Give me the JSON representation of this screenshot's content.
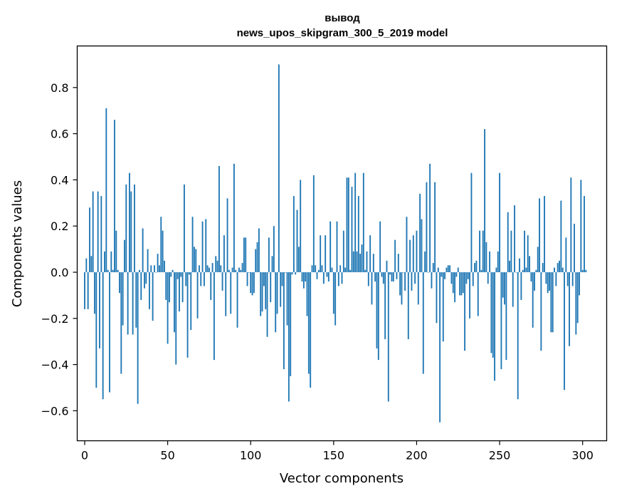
{
  "chart_data": {
    "type": "bar",
    "title_line1": "вывод",
    "title_line2": "news_upos_skipgram_300_5_2019 model",
    "xlabel": "Vector components",
    "ylabel": "Components values",
    "xlim": [
      -4.5,
      314.5
    ],
    "ylim": [
      -0.73,
      0.98
    ],
    "x_ticks": [
      0,
      50,
      100,
      150,
      200,
      250,
      300
    ],
    "x_tick_labels": [
      "0",
      "50",
      "100",
      "150",
      "200",
      "250",
      "300"
    ],
    "y_ticks": [
      -0.6,
      -0.4,
      -0.2,
      0.0,
      0.2,
      0.4,
      0.6,
      0.8
    ],
    "y_tick_labels": [
      "−0.6",
      "−0.4",
      "−0.2",
      "0.0",
      "0.2",
      "0.4",
      "0.6",
      "0.8"
    ],
    "grid": false,
    "bar_color": "#1f77b4",
    "values": [
      -0.16,
      0.06,
      -0.16,
      0.28,
      0.07,
      0.35,
      -0.18,
      -0.5,
      0.35,
      -0.33,
      0.33,
      -0.55,
      0.09,
      0.71,
      0.01,
      -0.52,
      0.09,
      0.01,
      0.66,
      0.18,
      0.01,
      -0.09,
      -0.44,
      -0.23,
      0.14,
      0.38,
      -0.27,
      0.43,
      0.35,
      -0.27,
      0.38,
      -0.24,
      -0.57,
      0.01,
      -0.12,
      0.19,
      -0.07,
      -0.05,
      0.1,
      -0.16,
      0.03,
      -0.21,
      0.03,
      0.0,
      0.08,
      0.03,
      0.24,
      0.18,
      0.05,
      -0.12,
      -0.31,
      -0.13,
      -0.02,
      0.01,
      -0.26,
      -0.4,
      -0.03,
      -0.17,
      -0.02,
      -0.13,
      0.38,
      -0.06,
      -0.37,
      -0.01,
      -0.25,
      0.24,
      0.11,
      0.1,
      -0.2,
      0.03,
      -0.06,
      0.22,
      -0.06,
      0.23,
      0.03,
      0.02,
      -0.12,
      0.04,
      -0.38,
      0.07,
      0.05,
      0.46,
      0.03,
      -0.08,
      0.16,
      -0.19,
      0.32,
      0.01,
      -0.18,
      0.02,
      0.47,
      0.01,
      -0.24,
      0.02,
      0.01,
      0.04,
      0.15,
      0.15,
      -0.06,
      0.0,
      -0.09,
      -0.1,
      -0.09,
      0.1,
      0.13,
      0.19,
      -0.19,
      -0.17,
      -0.06,
      -0.16,
      -0.28,
      0.15,
      -0.13,
      0.07,
      0.2,
      -0.26,
      -0.18,
      0.9,
      -0.15,
      -0.06,
      -0.42,
      0.0,
      -0.23,
      -0.56,
      -0.45,
      -0.01,
      0.33,
      -0.01,
      0.27,
      0.11,
      0.4,
      -0.04,
      -0.07,
      -0.04,
      -0.19,
      -0.44,
      -0.5,
      0.03,
      0.42,
      0.03,
      -0.03,
      0.01,
      0.16,
      0.03,
      -0.05,
      0.16,
      -0.02,
      -0.04,
      0.22,
      0.02,
      -0.18,
      -0.23,
      0.22,
      -0.06,
      0.03,
      -0.05,
      0.18,
      0.02,
      0.41,
      0.41,
      0.01,
      0.37,
      0.09,
      0.43,
      0.09,
      0.33,
      0.08,
      0.12,
      0.43,
      0.01,
      0.09,
      -0.06,
      0.16,
      -0.14,
      0.08,
      -0.04,
      -0.33,
      -0.38,
      0.22,
      -0.02,
      -0.05,
      -0.29,
      0.05,
      -0.56,
      -0.01,
      -0.04,
      -0.04,
      0.14,
      -0.03,
      0.08,
      -0.1,
      -0.14,
      0.0,
      -0.08,
      0.24,
      -0.29,
      0.14,
      -0.08,
      0.16,
      -0.05,
      0.18,
      -0.14,
      0.34,
      0.23,
      -0.44,
      0.09,
      0.39,
      0.0,
      0.47,
      -0.07,
      0.04,
      0.39,
      -0.22,
      0.02,
      -0.65,
      -0.02,
      -0.3,
      -0.03,
      0.02,
      0.03,
      0.03,
      -0.05,
      -0.09,
      -0.13,
      -0.02,
      0.02,
      -0.1,
      -0.1,
      -0.09,
      -0.34,
      -0.05,
      -0.03,
      -0.2,
      0.43,
      -0.06,
      0.04,
      0.05,
      -0.19,
      0.18,
      0.01,
      0.18,
      0.62,
      0.13,
      -0.05,
      0.09,
      -0.35,
      -0.37,
      -0.47,
      0.02,
      0.09,
      0.43,
      -0.42,
      -0.11,
      -0.14,
      -0.38,
      0.26,
      0.05,
      0.18,
      -0.15,
      0.29,
      0.0,
      -0.55,
      0.06,
      -0.12,
      0.01,
      0.18,
      0.02,
      0.16,
      0.07,
      -0.04,
      -0.24,
      -0.08,
      0.01,
      0.11,
      0.32,
      -0.34,
      0.04,
      0.33,
      -0.05,
      -0.09,
      -0.08,
      -0.26,
      -0.26,
      0.02,
      -0.06,
      0.04,
      0.05,
      0.31,
      0.02,
      -0.51,
      0.15,
      -0.06,
      -0.32,
      0.41,
      -0.06,
      0.21,
      -0.27,
      -0.22,
      -0.1,
      0.4,
      0.01,
      0.33,
      0.01
    ]
  }
}
